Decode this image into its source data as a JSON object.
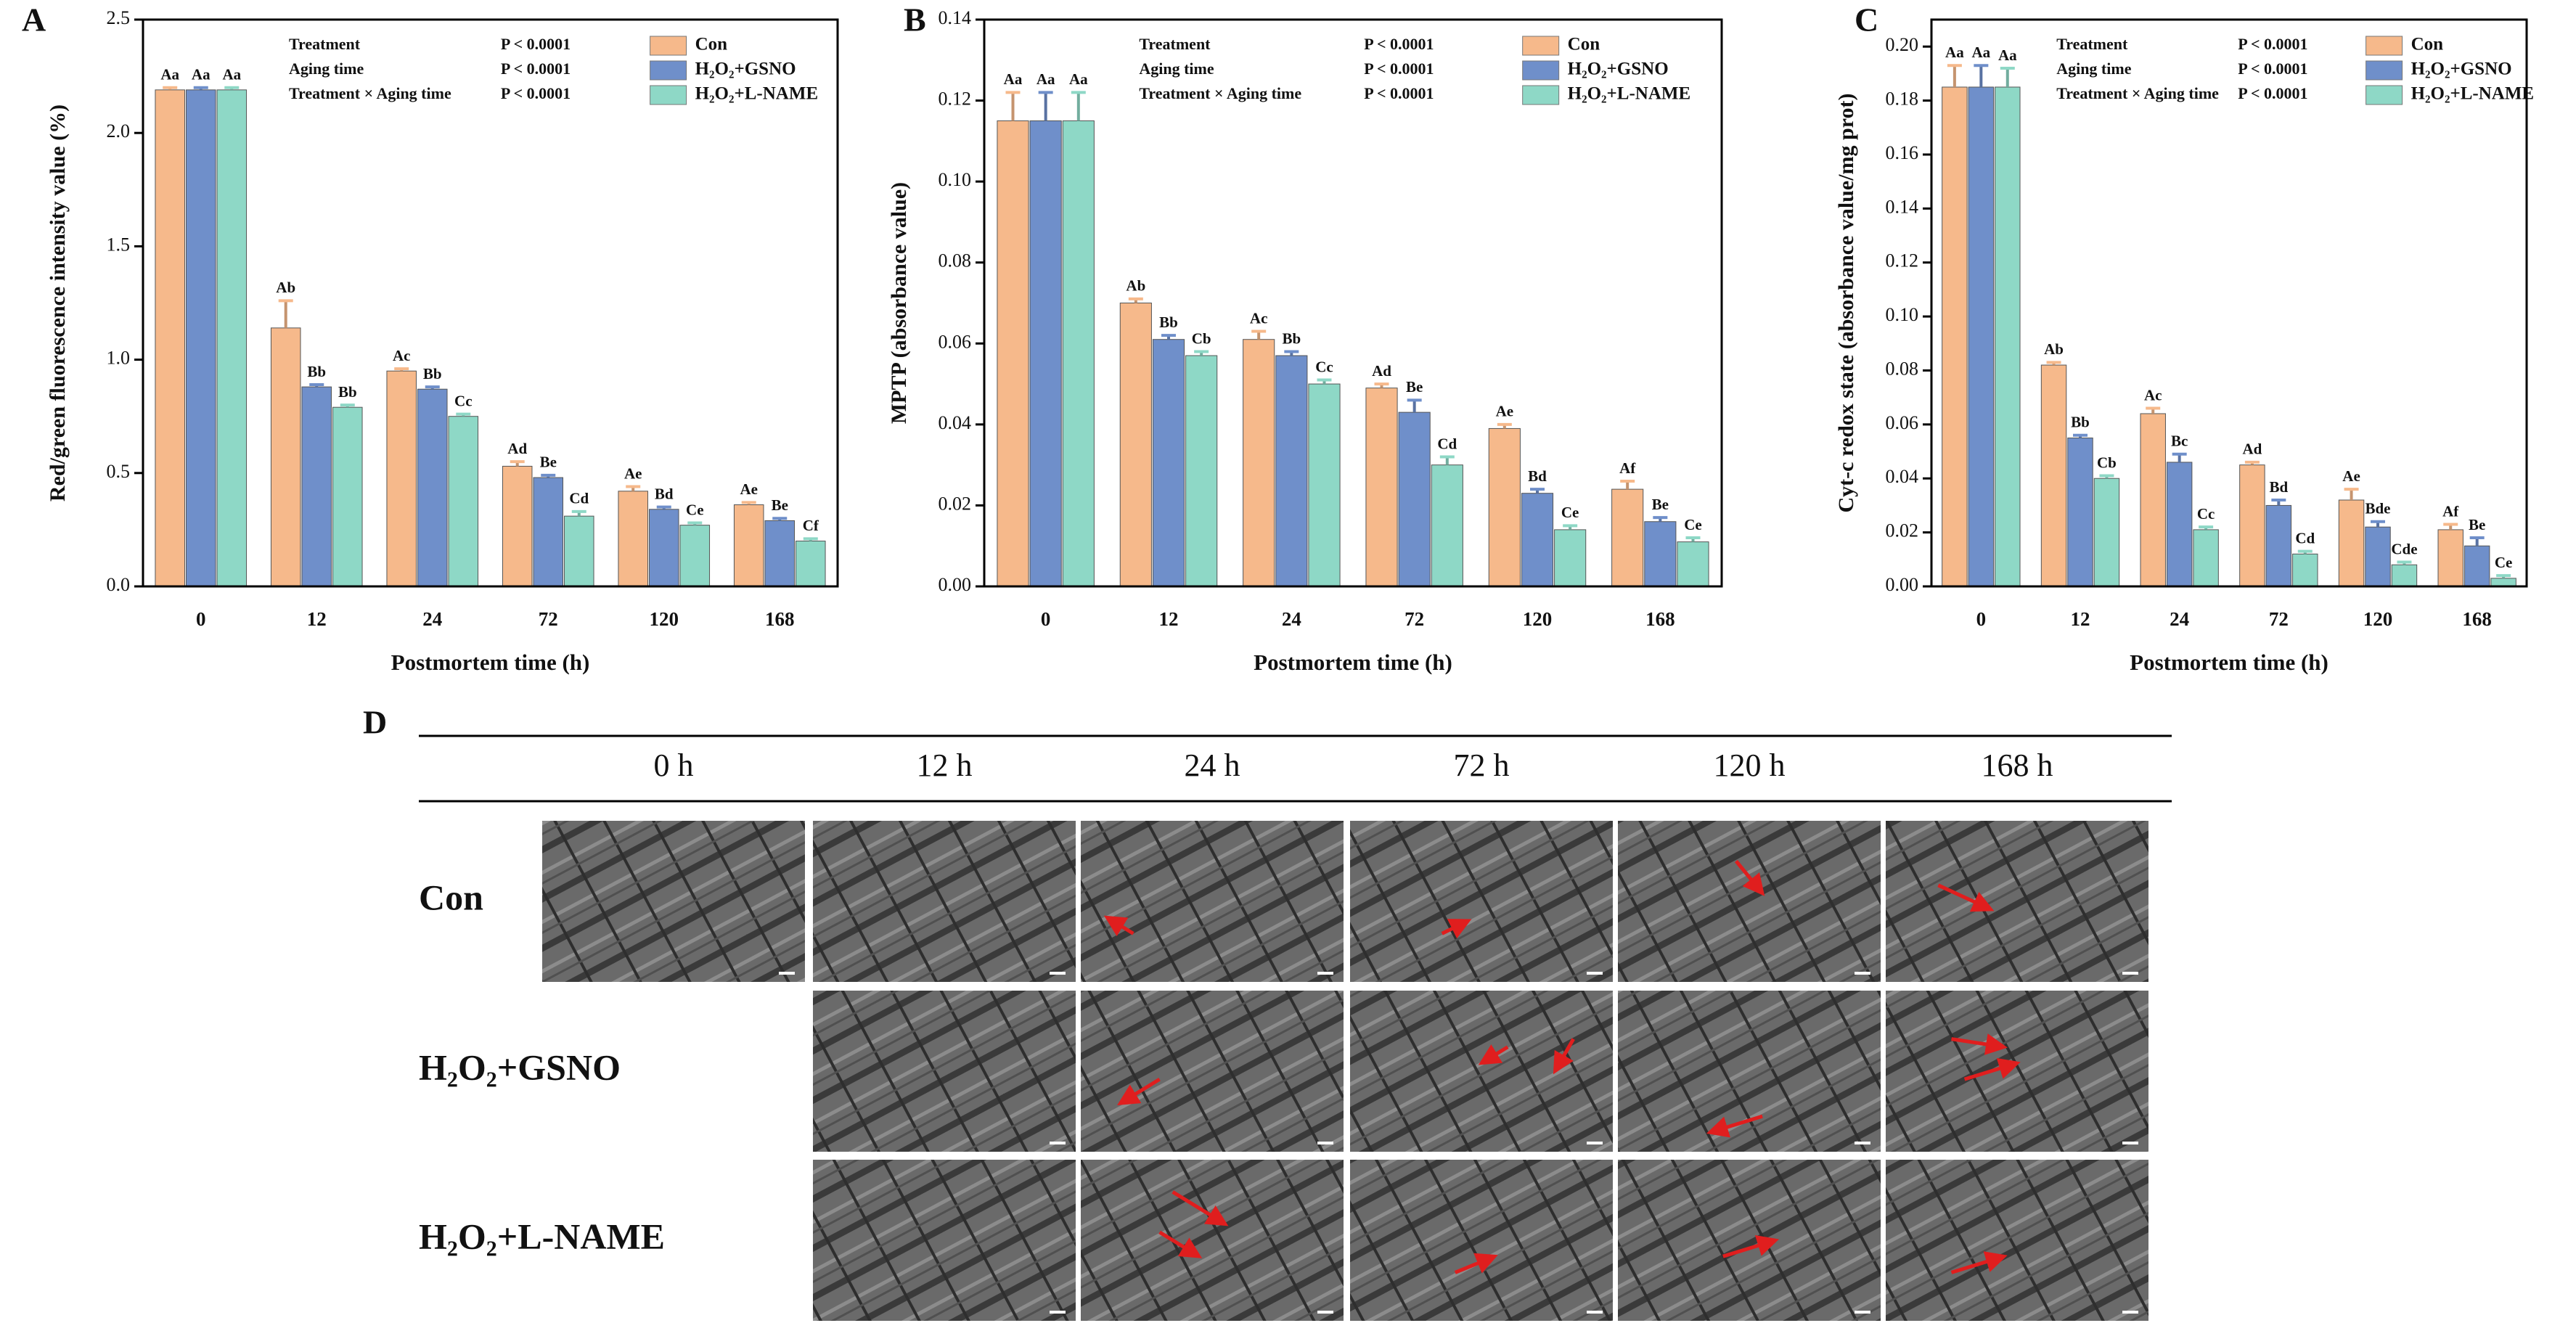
{
  "chart_data": [
    {
      "type": "bar",
      "panel": "A",
      "ylabel": "Red/green fluorescence intensity value (%)",
      "xlabel": "Postmortem time (h)",
      "categories": [
        "0",
        "12",
        "24",
        "72",
        "120",
        "168"
      ],
      "ylim": [
        0,
        2.5
      ],
      "yticks": [
        {
          "value": 0,
          "label": "0.0"
        },
        0.5,
        {
          "value": 1,
          "label": "1.0"
        },
        1.5,
        {
          "value": 2,
          "label": "2.0"
        },
        2.5
      ],
      "stats": [
        {
          "term": "Treatment",
          "p": "P < 0.0001"
        },
        {
          "term": "Aging time",
          "p": "P < 0.0001"
        },
        {
          "term": "Treatment × Aging time",
          "p": "P < 0.0001"
        }
      ],
      "series": [
        {
          "name": "Con",
          "color": "#f6b98b",
          "values": [
            2.19,
            1.14,
            0.95,
            0.53,
            0.42,
            0.36
          ],
          "errors": [
            0.01,
            0.12,
            0.01,
            0.02,
            0.02,
            0.01
          ],
          "letters": [
            "Aa",
            "Ab",
            "Ac",
            "Ad",
            "Ae",
            "Ae"
          ]
        },
        {
          "name": "H₂O₂+GSNO",
          "color": "#6f8fca",
          "values": [
            2.19,
            0.88,
            0.87,
            0.48,
            0.34,
            0.29
          ],
          "errors": [
            0.01,
            0.01,
            0.01,
            0.01,
            0.01,
            0.01
          ],
          "letters": [
            "Aa",
            "Bb",
            "Bb",
            "Be",
            "Bd",
            "Be"
          ]
        },
        {
          "name": "H₂O₂+L-NAME",
          "color": "#8ed8c6",
          "values": [
            2.19,
            0.79,
            0.75,
            0.31,
            0.27,
            0.2
          ],
          "errors": [
            0.01,
            0.01,
            0.01,
            0.02,
            0.01,
            0.01
          ],
          "letters": [
            "Aa",
            "Bb",
            "Cc",
            "Cd",
            "Ce",
            "Cf"
          ]
        }
      ]
    },
    {
      "type": "bar",
      "panel": "B",
      "ylabel": "MPTP (absorbance value)",
      "xlabel": "Postmortem time (h)",
      "categories": [
        "0",
        "12",
        "24",
        "72",
        "120",
        "168"
      ],
      "ylim": [
        0,
        0.14
      ],
      "yticks": [
        {
          "value": 0,
          "label": "0.00"
        },
        0.02,
        0.04,
        0.06,
        0.08,
        {
          "value": 0.1,
          "label": "0.10"
        },
        0.12,
        0.14
      ],
      "stats": [
        {
          "term": "Treatment",
          "p": "P < 0.0001"
        },
        {
          "term": "Aging time",
          "p": "P < 0.0001"
        },
        {
          "term": "Treatment × Aging time",
          "p": "P < 0.0001"
        }
      ],
      "series": [
        {
          "name": "Con",
          "color": "#f6b98b",
          "values": [
            0.115,
            0.07,
            0.061,
            0.049,
            0.039,
            0.024
          ],
          "errors": [
            0.007,
            0.001,
            0.002,
            0.001,
            0.001,
            0.002
          ],
          "letters": [
            "Aa",
            "Ab",
            "Ac",
            "Ad",
            "Ae",
            "Af"
          ]
        },
        {
          "name": "H₂O₂+GSNO",
          "color": "#6f8fca",
          "values": [
            0.115,
            0.061,
            0.057,
            0.043,
            0.023,
            0.016
          ],
          "errors": [
            0.007,
            0.001,
            0.001,
            0.003,
            0.001,
            0.001
          ],
          "letters": [
            "Aa",
            "Bb",
            "Bb",
            "Be",
            "Bd",
            "Be"
          ]
        },
        {
          "name": "H₂O₂+L-NAME",
          "color": "#8ed8c6",
          "values": [
            0.115,
            0.057,
            0.05,
            0.03,
            0.014,
            0.011
          ],
          "errors": [
            0.007,
            0.001,
            0.001,
            0.002,
            0.001,
            0.001
          ],
          "letters": [
            "Aa",
            "Cb",
            "Cc",
            "Cd",
            "Ce",
            "Ce"
          ]
        }
      ]
    },
    {
      "type": "bar",
      "panel": "C",
      "ylabel": "Cyt-c redox state (absorbance value/mg prot)",
      "xlabel": "Postmortem time (h)",
      "categories": [
        "0",
        "12",
        "24",
        "72",
        "120",
        "168"
      ],
      "ylim": [
        0,
        0.21
      ],
      "yticks": [
        {
          "value": 0,
          "label": "0.00"
        },
        0.02,
        0.04,
        0.06,
        0.08,
        {
          "value": 0.1,
          "label": "0.10"
        },
        0.12,
        0.14,
        0.16,
        0.18,
        {
          "value": 0.2,
          "label": "0.20"
        }
      ],
      "stats": [
        {
          "term": "Treatment",
          "p": "P < 0.0001"
        },
        {
          "term": "Aging time",
          "p": "P < 0.0001"
        },
        {
          "term": "Treatment × Aging time",
          "p": "P < 0.0001"
        }
      ],
      "series": [
        {
          "name": "Con",
          "color": "#f6b98b",
          "values": [
            0.185,
            0.082,
            0.064,
            0.045,
            0.032,
            0.021
          ],
          "errors": [
            0.008,
            0.001,
            0.002,
            0.001,
            0.004,
            0.002
          ],
          "letters": [
            "Aa",
            "Ab",
            "Ac",
            "Ad",
            "Ae",
            "Af"
          ]
        },
        {
          "name": "H₂O₂+GSNO",
          "color": "#6f8fca",
          "values": [
            0.185,
            0.055,
            0.046,
            0.03,
            0.022,
            0.015
          ],
          "errors": [
            0.008,
            0.001,
            0.003,
            0.002,
            0.002,
            0.003
          ],
          "letters": [
            "Aa",
            "Bb",
            "Bc",
            "Bd",
            "Bde",
            "Be"
          ]
        },
        {
          "name": "H₂O₂+L-NAME",
          "color": "#8ed8c6",
          "values": [
            0.185,
            0.04,
            0.021,
            0.012,
            0.008,
            0.003
          ],
          "errors": [
            0.007,
            0.001,
            0.001,
            0.001,
            0.001,
            0.001
          ],
          "letters": [
            "Aa",
            "Cb",
            "Cc",
            "Cd",
            "Cde",
            "Ce"
          ]
        }
      ]
    }
  ],
  "panel_d": {
    "label": "D",
    "columns": [
      "0 h",
      "12 h",
      "24 h",
      "72 h",
      "120 h",
      "168 h"
    ],
    "rows": [
      "Con",
      "H₂O₂+GSNO",
      "H₂O₂+L-NAME"
    ]
  }
}
